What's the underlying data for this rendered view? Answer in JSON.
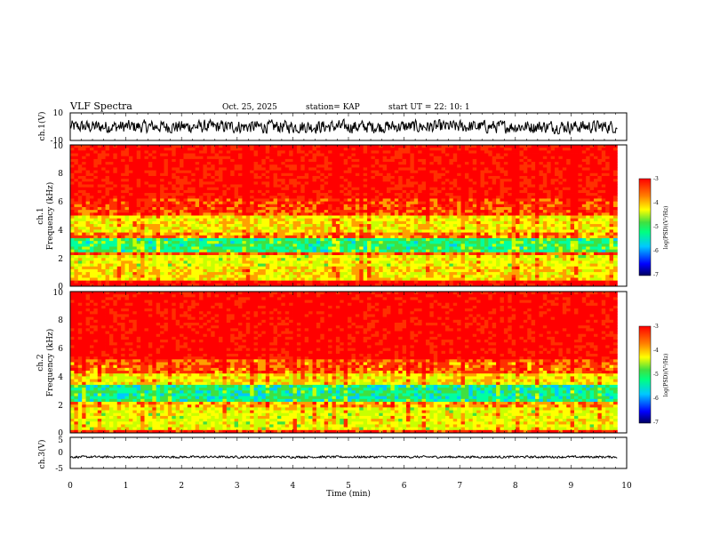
{
  "header": {
    "title": "VLF Spectra",
    "date": "Oct. 25, 2025",
    "station": "station= KAP",
    "start": "start  UT =   22: 10: 1"
  },
  "chart_data": [
    {
      "type": "line",
      "id": "ch1-waveform",
      "ylabel": "ch.1(V)",
      "yticks": [
        "10",
        "-10"
      ],
      "ylim": [
        -10,
        10
      ],
      "xlim": [
        0,
        10
      ],
      "data_end_min": 9.83,
      "baseline": 0,
      "amplitude": 6
    },
    {
      "type": "heatmap",
      "id": "ch1-spectrogram",
      "channel_label": "ch.1",
      "ylabel": "Frequency (kHz)",
      "yticks": [
        "0",
        "2",
        "4",
        "6",
        "8",
        "10"
      ],
      "ylim_khz": [
        0,
        10
      ],
      "xlim_min": [
        0,
        10
      ],
      "data_end_min": 9.83,
      "bands": [
        {
          "from": 0.0,
          "to": 0.35,
          "level": 4.5
        },
        {
          "from": 0.35,
          "to": 1.5,
          "level": 3.1
        },
        {
          "from": 1.5,
          "to": 2.2,
          "level": 2.8
        },
        {
          "from": 2.2,
          "to": 2.5,
          "level": 3.8
        },
        {
          "from": 2.5,
          "to": 3.5,
          "level": 1.8
        },
        {
          "from": 3.5,
          "to": 3.9,
          "level": 3.6
        },
        {
          "from": 3.9,
          "to": 5.0,
          "level": 3.0
        },
        {
          "from": 5.0,
          "to": 6.2,
          "level": 4.0
        },
        {
          "from": 6.2,
          "to": 10.0,
          "level": 4.4
        }
      ],
      "colorbar": {
        "label": "log(PSD)(V²/Hz)",
        "ticks": [
          "-3",
          "-4",
          "-5",
          "-6",
          "-7"
        ],
        "range": [
          -7,
          -3
        ]
      }
    },
    {
      "type": "heatmap",
      "id": "ch2-spectrogram",
      "channel_label": "ch.2",
      "ylabel": "Frequency (kHz)",
      "yticks": [
        "0",
        "2",
        "4",
        "6",
        "8",
        "10"
      ],
      "ylim_khz": [
        0,
        10
      ],
      "xlim_min": [
        0,
        10
      ],
      "data_end_min": 9.83,
      "bands": [
        {
          "from": 0.0,
          "to": 0.3,
          "level": 4.2
        },
        {
          "from": 0.3,
          "to": 1.8,
          "level": 2.8
        },
        {
          "from": 1.8,
          "to": 2.2,
          "level": 3.4
        },
        {
          "from": 2.2,
          "to": 3.4,
          "level": 1.6
        },
        {
          "from": 3.4,
          "to": 4.3,
          "level": 3.0
        },
        {
          "from": 4.3,
          "to": 5.2,
          "level": 3.8
        },
        {
          "from": 5.2,
          "to": 10.0,
          "level": 4.5
        }
      ],
      "colorbar": {
        "label": "log(PSD)(V²/Hz)",
        "ticks": [
          "-3",
          "-4",
          "-5",
          "-6",
          "-7"
        ],
        "range": [
          -7,
          -3
        ]
      }
    },
    {
      "type": "line",
      "id": "ch3-waveform",
      "ylabel": "ch.3(V)",
      "yticks": [
        "5",
        "0",
        "-5"
      ],
      "ylim": [
        -5,
        5
      ],
      "xlim": [
        0,
        10
      ],
      "data_end_min": 9.83,
      "baseline": -1.3,
      "amplitude": 0.45,
      "xlabel": "Time (min)",
      "xticks": [
        "0",
        "1",
        "2",
        "3",
        "4",
        "5",
        "6",
        "7",
        "8",
        "9",
        "10"
      ]
    }
  ],
  "colors": {
    "axis": "#000000",
    "trace": "#000000",
    "scale": [
      "#0000c8",
      "#0050ff",
      "#00c8ff",
      "#00ffa0",
      "#40e040",
      "#c8ff00",
      "#ffff00",
      "#ffa000",
      "#ff3000",
      "#ff0000"
    ]
  }
}
